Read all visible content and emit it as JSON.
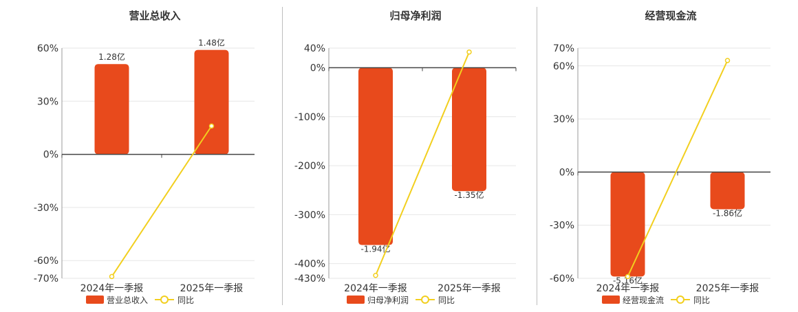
{
  "colors": {
    "bar": "#e84a1c",
    "line": "#f2cf1e",
    "grid": "#e6e6e6",
    "axis": "#444444"
  },
  "chart_data": [
    {
      "type": "bar",
      "title": "营业总收入",
      "categories": [
        "2024年一季报",
        "2025年一季报"
      ],
      "ylim": [
        -70,
        60
      ],
      "yticks": [
        60,
        30,
        0,
        -30,
        -60,
        -70
      ],
      "ytick_labels": [
        "60%",
        "30%",
        "0%",
        "-30%",
        "-60%",
        "-70%"
      ],
      "grid": true,
      "legend_position": "bottom",
      "series": [
        {
          "name": "营业总收入",
          "kind": "bar",
          "values": [
            51,
            59
          ],
          "labels": [
            "1.28亿",
            "1.48亿"
          ]
        },
        {
          "name": "同比",
          "kind": "line",
          "values": [
            -69,
            16
          ]
        }
      ]
    },
    {
      "type": "bar",
      "title": "归母净利润",
      "categories": [
        "2024年一季报",
        "2025年一季报"
      ],
      "ylim": [
        -430,
        40
      ],
      "yticks": [
        40,
        0,
        -100,
        -200,
        -300,
        -400,
        -430
      ],
      "ytick_labels": [
        "40%",
        "0%",
        "-100%",
        "-200%",
        "-300%",
        "-400%",
        "-430%"
      ],
      "grid": true,
      "legend_position": "bottom",
      "series": [
        {
          "name": "归母净利润",
          "kind": "bar",
          "values": [
            -362,
            -252
          ],
          "labels": [
            "-1.94亿",
            "-1.35亿"
          ]
        },
        {
          "name": "同比",
          "kind": "line",
          "values": [
            -424,
            32
          ]
        }
      ]
    },
    {
      "type": "bar",
      "title": "经营现金流",
      "categories": [
        "2024年一季报",
        "2025年一季报"
      ],
      "ylim": [
        -60,
        70
      ],
      "yticks": [
        70,
        60,
        30,
        0,
        -30,
        -60
      ],
      "ytick_labels": [
        "70%",
        "60%",
        "30%",
        "0%",
        "-30%",
        "-60%"
      ],
      "grid": true,
      "legend_position": "bottom",
      "series": [
        {
          "name": "经营现金流",
          "kind": "bar",
          "values": [
            -59,
            -21
          ],
          "labels": [
            "-5.16亿",
            "-1.86亿"
          ]
        },
        {
          "name": "同比",
          "kind": "line",
          "values": [
            -59,
            63
          ]
        }
      ]
    }
  ]
}
